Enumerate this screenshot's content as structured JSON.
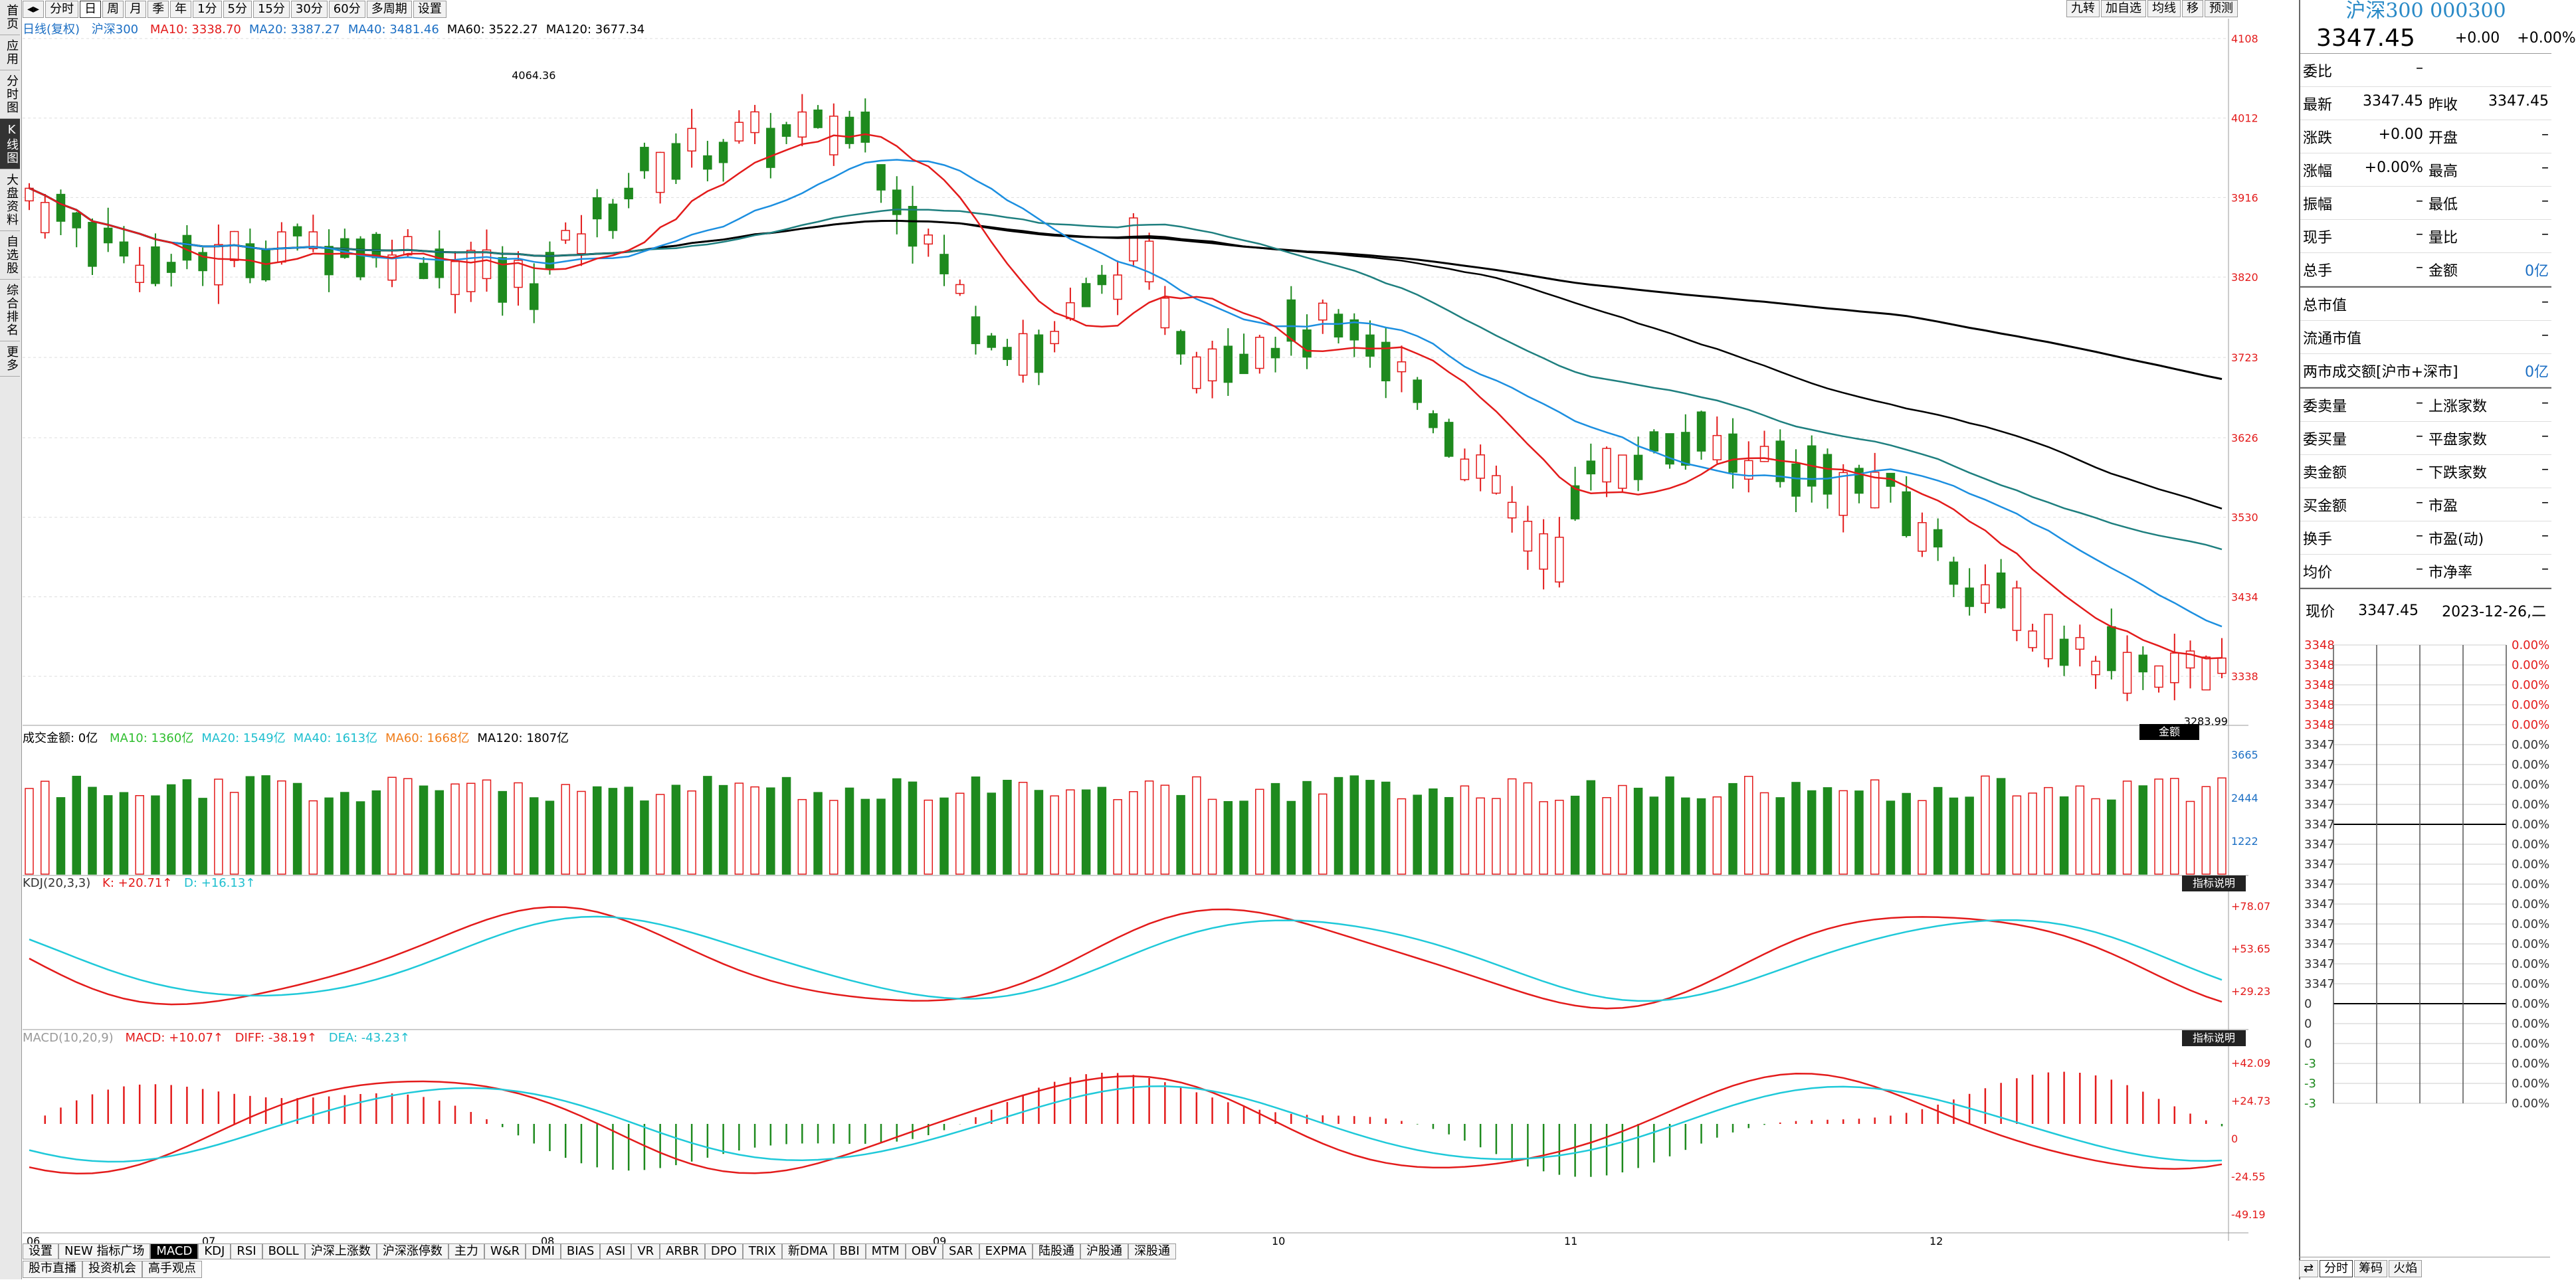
{
  "toolbar": {
    "buttons": [
      "分时",
      "日",
      "周",
      "月",
      "季",
      "年",
      "1分",
      "5分",
      "15分",
      "30分",
      "60分",
      "多周期",
      "设置"
    ],
    "active": "日",
    "right_buttons": [
      "九转",
      "加自选",
      "均线",
      "移",
      "预测"
    ]
  },
  "left_sidebar": [
    "首页",
    "应用",
    "分时图",
    "K线图",
    "大盘资料",
    "自选股",
    "综合排名",
    "更多"
  ],
  "main_chart": {
    "title": "日线(复权)",
    "symbol": "沪深300",
    "ma": [
      {
        "label": "MA10: 3338.70",
        "color": "#e31b1b"
      },
      {
        "label": "MA20: 3387.27",
        "color": "#1c6fc4"
      },
      {
        "label": "MA40: 3481.46",
        "color": "#1c6fc4"
      },
      {
        "label": "MA60: 3522.27",
        "color": "#000000"
      },
      {
        "label": "MA120: 3677.34",
        "color": "#000000"
      }
    ],
    "yticks": [
      "4108",
      "4012",
      "3916",
      "3820",
      "3723",
      "3626",
      "3530",
      "3434",
      "3338"
    ],
    "annotations": {
      "high": "4064.36",
      "low": "3283.99"
    },
    "months": [
      "06",
      "07",
      "08",
      "09",
      "10",
      "11",
      "12"
    ]
  },
  "volume_panel": {
    "label": "成交金额: 0亿",
    "ma": [
      {
        "label": "MA10: 1360亿",
        "color": "#2fbe2f"
      },
      {
        "label": "MA20: 1549亿",
        "color": "#1fbfcf"
      },
      {
        "label": "MA40: 1613亿",
        "color": "#1fbfcf"
      },
      {
        "label": "MA60: 1668亿",
        "color": "#f07d1a"
      },
      {
        "label": "MA120: 1807亿",
        "color": "#000000"
      }
    ],
    "button": "金额",
    "yticks": [
      "3665",
      "2444",
      "1222"
    ]
  },
  "kdj_panel": {
    "label": "KDJ(20,3,3)",
    "k": "K: +20.71↑",
    "d": "D: +16.13↑",
    "button": "指标说明",
    "yticks": [
      "+78.07",
      "+53.65",
      "+29.23"
    ]
  },
  "macd_panel": {
    "label": "MACD(10,20,9)",
    "macd": "MACD: +10.07↑",
    "diff": "DIFF: -38.19↑",
    "dea": "DEA: -43.23↑",
    "button": "指标说明",
    "yticks": [
      "+42.09",
      "+24.73",
      "0",
      "-24.55",
      "-49.19"
    ]
  },
  "bottom_tabs": [
    "设置",
    "NEW 指标广场",
    "MACD",
    "KDJ",
    "RSI",
    "BOLL",
    "沪深上涨数",
    "沪深涨停数",
    "主力",
    "W&R",
    "DMI",
    "BIAS",
    "ASI",
    "VR",
    "ARBR",
    "DPO",
    "TRIX",
    "新DMA",
    "BBI",
    "MTM",
    "OBV",
    "SAR",
    "EXPMA",
    "陆股通",
    "沪股通",
    "深股通"
  ],
  "bottom_active": "MACD",
  "bottom_tabs2": [
    "股市直播",
    "投资机会",
    "高手观点"
  ],
  "right_panel": {
    "title": "沪深300 000300",
    "price": "3347.45",
    "change": "+0.00",
    "change_pct": "+0.00%",
    "rows": [
      [
        [
          "委比",
          "–"
        ],
        [
          "",
          ""
        ]
      ],
      [
        [
          "最新",
          "3347.45"
        ],
        [
          "昨收",
          "3347.45"
        ]
      ],
      [
        [
          "涨跌",
          "+0.00"
        ],
        [
          "开盘",
          "–"
        ]
      ],
      [
        [
          "涨幅",
          "+0.00%"
        ],
        [
          "最高",
          "–"
        ]
      ],
      [
        [
          "振幅",
          "–"
        ],
        [
          "最低",
          "–"
        ]
      ],
      [
        [
          "现手",
          "–"
        ],
        [
          "量比",
          "–"
        ]
      ],
      [
        [
          "总手",
          "–"
        ],
        [
          "金额",
          "0亿"
        ]
      ]
    ],
    "rows2": [
      [
        [
          "总市值",
          "–"
        ]
      ],
      [
        [
          "流通市值",
          "–"
        ]
      ],
      [
        [
          "两市成交额[沪市+深市]",
          "0亿"
        ]
      ]
    ],
    "rows3": [
      [
        [
          "委卖量",
          "–"
        ],
        [
          "上涨家数",
          "–"
        ]
      ],
      [
        [
          "委买量",
          "–"
        ],
        [
          "平盘家数",
          "–"
        ]
      ],
      [
        [
          "卖金额",
          "–"
        ],
        [
          "下跌家数",
          "–"
        ]
      ],
      [
        [
          "买金额",
          "–"
        ],
        [
          "市盈",
          "–"
        ]
      ],
      [
        [
          "换手",
          "–"
        ],
        [
          "市盈(动)",
          "–"
        ]
      ],
      [
        [
          "均价",
          "–"
        ],
        [
          "市净率",
          "–"
        ]
      ]
    ],
    "tick_header": {
      "label": "现价",
      "price": "3347.45",
      "date": "2023-12-26,二"
    },
    "tick_left": [
      "3348",
      "3348",
      "3348",
      "3348",
      "3348",
      "3347",
      "3347",
      "3347",
      "3347",
      "3347",
      "3347",
      "3347",
      "3347",
      "3347",
      "3347",
      "3347",
      "3347",
      "3347",
      "0",
      "0",
      "0",
      "-3",
      "-3",
      "-3"
    ],
    "tick_right": [
      "0.00%",
      "0.00%",
      "0.00%",
      "0.00%",
      "0.00%",
      "0.00%",
      "0.00%",
      "0.00%",
      "0.00%",
      "0.00%",
      "0.00%",
      "0.00%",
      "0.00%",
      "0.00%",
      "0.00%",
      "0.00%",
      "0.00%",
      "0.00%",
      "0.00%",
      "0.00%",
      "0.00%",
      "0.00%",
      "0.00%",
      "0.00%"
    ],
    "bottom_tabs": [
      "分时",
      "筹码",
      "火焰"
    ]
  }
}
